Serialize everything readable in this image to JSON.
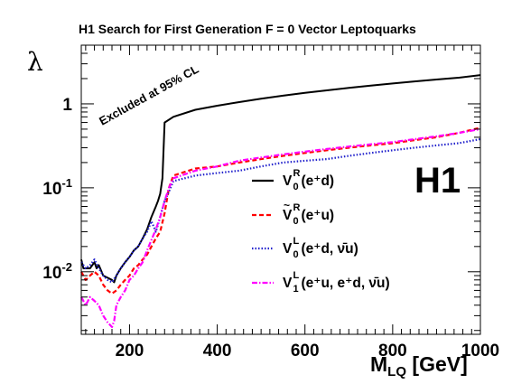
{
  "chart_data": {
    "type": "line",
    "title": "H1 Search for First Generation F = 0 Vector Leptoquarks",
    "ylabel": "λ",
    "xlabel": {
      "main": "M",
      "sub": "LQ",
      "unit": " [GeV]"
    },
    "logo": "H1",
    "annotation": "Excluded at 95% CL",
    "x_axis": {
      "min": 90,
      "max": 1000,
      "ticks": [
        200,
        400,
        600,
        800,
        1000
      ]
    },
    "y_axis": {
      "scale": "log",
      "min": 0.0018,
      "max": 5,
      "ticks": [
        {
          "value": 0.01,
          "base": "10",
          "exp": "-2"
        },
        {
          "value": 0.1,
          "base": "10",
          "exp": "-1"
        },
        {
          "value": 1,
          "base": "1",
          "exp": ""
        }
      ]
    },
    "legend": {
      "placement": "center-right"
    },
    "series": [
      {
        "symbol": "V",
        "sub": "0",
        "sup": "R",
        "tilde": false,
        "text": " (e⁺d)",
        "color": "#000000",
        "dash": "",
        "x": [
          90,
          95,
          100,
          110,
          120,
          125,
          130,
          140,
          150,
          160,
          165,
          170,
          180,
          190,
          200,
          210,
          220,
          230,
          240,
          250,
          260,
          265,
          270,
          275,
          280,
          300,
          350,
          400,
          450,
          500,
          550,
          600,
          650,
          700,
          750,
          800,
          850,
          900,
          950,
          1000
        ],
        "y": [
          0.014,
          0.011,
          0.011,
          0.011,
          0.013,
          0.011,
          0.012,
          0.009,
          0.0085,
          0.008,
          0.0075,
          0.009,
          0.011,
          0.013,
          0.015,
          0.018,
          0.02,
          0.025,
          0.032,
          0.045,
          0.06,
          0.07,
          0.085,
          0.13,
          0.6,
          0.7,
          0.85,
          0.95,
          1.05,
          1.15,
          1.25,
          1.35,
          1.45,
          1.55,
          1.65,
          1.75,
          1.85,
          1.95,
          2.05,
          2.2
        ]
      },
      {
        "symbol": "V",
        "sub": "0",
        "sup": "R",
        "tilde": true,
        "text": " (e⁺u)",
        "color": "#ff0000",
        "dash": "5,3",
        "x": [
          90,
          100,
          110,
          120,
          130,
          140,
          150,
          160,
          170,
          180,
          190,
          200,
          210,
          220,
          230,
          240,
          250,
          260,
          270,
          280,
          290,
          300,
          350,
          400,
          450,
          500,
          550,
          600,
          650,
          700,
          750,
          800,
          850,
          900,
          950,
          1000
        ],
        "y": [
          0.01,
          0.008,
          0.009,
          0.01,
          0.009,
          0.007,
          0.006,
          0.0055,
          0.006,
          0.007,
          0.008,
          0.009,
          0.011,
          0.012,
          0.014,
          0.016,
          0.02,
          0.025,
          0.03,
          0.05,
          0.1,
          0.14,
          0.17,
          0.18,
          0.2,
          0.22,
          0.24,
          0.26,
          0.28,
          0.3,
          0.32,
          0.34,
          0.37,
          0.4,
          0.45,
          0.52
        ]
      },
      {
        "symbol": "V",
        "sub": "0",
        "sup": "L",
        "tilde": false,
        "text": " (e⁺d, ν̄u)",
        "color": "#2222cc",
        "dash": "1.5,2",
        "x": [
          90,
          100,
          110,
          120,
          130,
          140,
          150,
          160,
          170,
          180,
          190,
          200,
          210,
          220,
          230,
          240,
          250,
          260,
          270,
          280,
          290,
          300,
          350,
          400,
          450,
          500,
          550,
          600,
          650,
          700,
          750,
          800,
          850,
          900,
          950,
          1000
        ],
        "y": [
          0.013,
          0.011,
          0.012,
          0.014,
          0.011,
          0.009,
          0.008,
          0.0075,
          0.009,
          0.011,
          0.013,
          0.015,
          0.018,
          0.02,
          0.025,
          0.03,
          0.04,
          0.03,
          0.045,
          0.07,
          0.09,
          0.12,
          0.14,
          0.15,
          0.16,
          0.18,
          0.2,
          0.21,
          0.22,
          0.24,
          0.26,
          0.28,
          0.3,
          0.32,
          0.34,
          0.38
        ]
      },
      {
        "symbol": "V",
        "sub": "1",
        "sup": "L",
        "tilde": false,
        "text": " (e⁺u, e⁺d, ν̄u)",
        "color": "#ff00ff",
        "dash": "6,2,1.5,2",
        "x": [
          90,
          100,
          110,
          120,
          130,
          140,
          150,
          160,
          165,
          170,
          180,
          190,
          200,
          210,
          220,
          230,
          240,
          250,
          260,
          270,
          280,
          290,
          300,
          350,
          400,
          450,
          500,
          550,
          600,
          650,
          700,
          750,
          800,
          850,
          900,
          950,
          1000
        ],
        "y": [
          0.005,
          0.004,
          0.005,
          0.0045,
          0.004,
          0.003,
          0.0025,
          0.0022,
          0.0026,
          0.004,
          0.005,
          0.006,
          0.008,
          0.009,
          0.011,
          0.013,
          0.018,
          0.024,
          0.032,
          0.045,
          0.07,
          0.1,
          0.13,
          0.16,
          0.18,
          0.21,
          0.23,
          0.25,
          0.27,
          0.29,
          0.31,
          0.33,
          0.35,
          0.38,
          0.41,
          0.45,
          0.5
        ]
      }
    ]
  }
}
